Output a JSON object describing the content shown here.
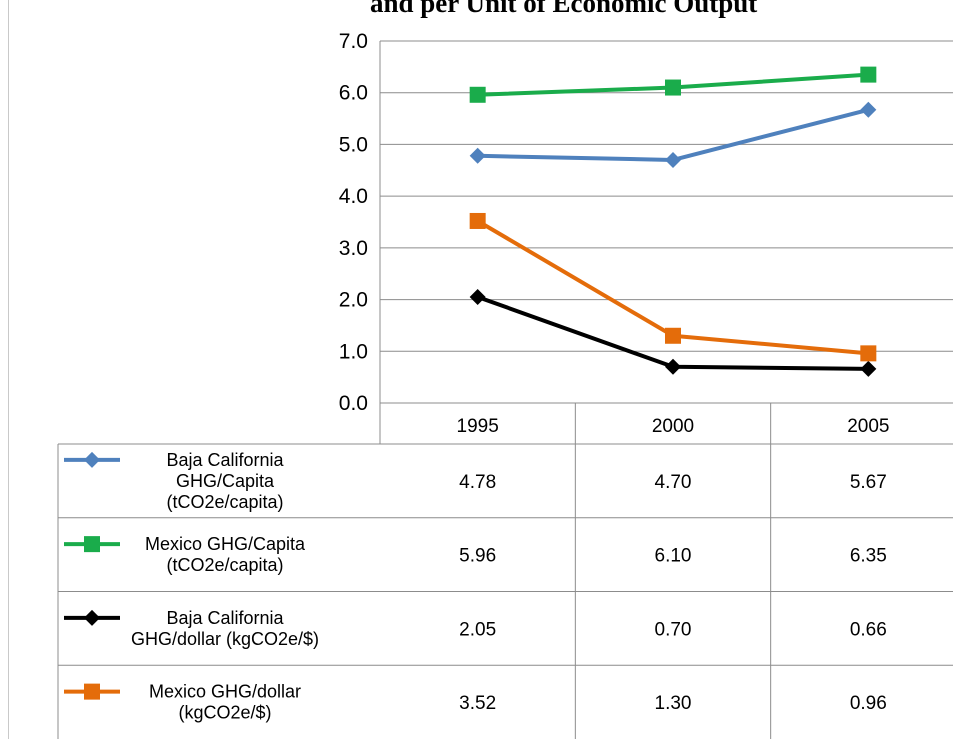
{
  "page_title": "and per Unit of Economic Output",
  "chart_data": {
    "type": "line",
    "title": "",
    "categories": [
      "1995",
      "2000",
      "2005"
    ],
    "ylim": [
      0,
      7
    ],
    "yticks": [
      "0.0",
      "1.0",
      "2.0",
      "3.0",
      "4.0",
      "5.0",
      "6.0",
      "7.0"
    ],
    "grid": true,
    "legend_placement": "data-table",
    "series": [
      {
        "name": "Baja California GHG/Capita (tCO2e/capita)",
        "legend_lines": [
          "Baja California",
          "GHG/Capita",
          "(tCO2e/capita)"
        ],
        "values": [
          4.78,
          4.7,
          5.67
        ],
        "labels": [
          "4.78",
          "4.70",
          "5.67"
        ],
        "color": "#4f81bd",
        "marker": "diamond"
      },
      {
        "name": "Mexico GHG/Capita (tCO2e/capita)",
        "legend_lines": [
          "Mexico GHG/Capita",
          "(tCO2e/capita)"
        ],
        "values": [
          5.96,
          6.1,
          6.35
        ],
        "labels": [
          "5.96",
          "6.10",
          "6.35"
        ],
        "color": "#1aac4b",
        "marker": "square"
      },
      {
        "name": "Baja California GHG/dollar (kgCO2e/$)",
        "legend_lines": [
          "Baja California",
          "GHG/dollar (kgCO2e/$)"
        ],
        "values": [
          2.05,
          0.7,
          0.66
        ],
        "labels": [
          "2.05",
          "0.70",
          "0.66"
        ],
        "color": "#000000",
        "marker": "diamond"
      },
      {
        "name": "Mexico GHG/dollar (kgCO2e/$)",
        "legend_lines": [
          "Mexico GHG/dollar",
          "(kgCO2e/$)"
        ],
        "values": [
          3.52,
          1.3,
          0.96
        ],
        "labels": [
          "3.52",
          "1.30",
          "0.96"
        ],
        "color": "#e46c0a",
        "marker": "square"
      }
    ]
  }
}
